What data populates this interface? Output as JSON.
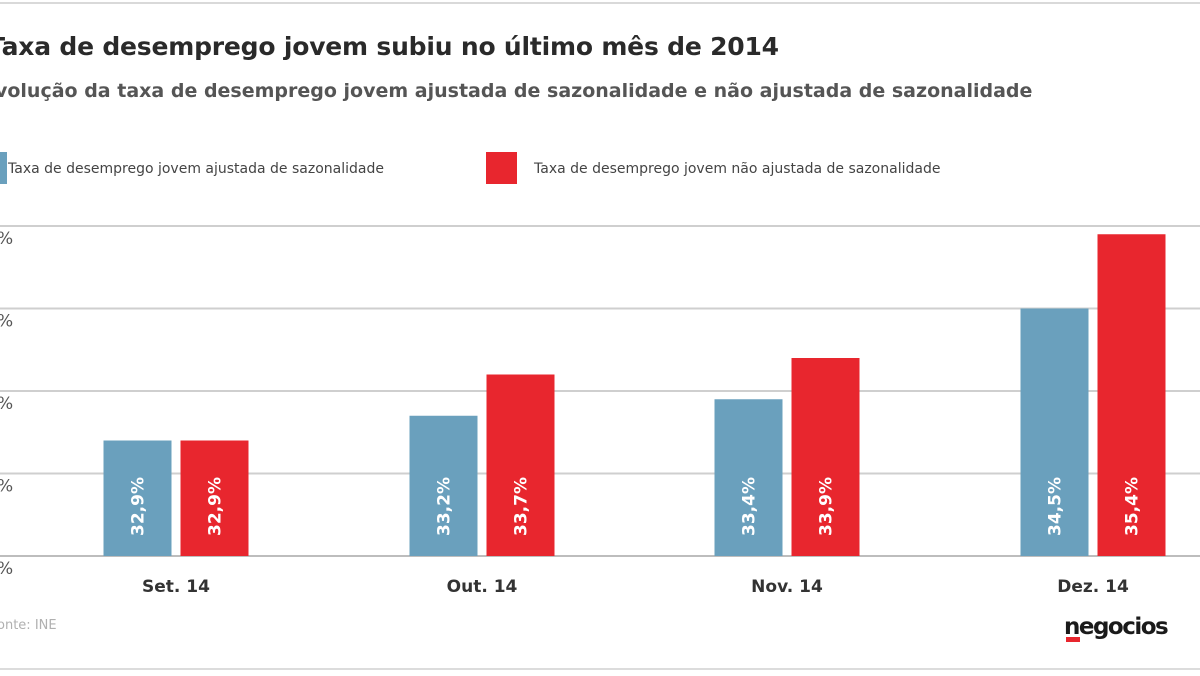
{
  "header": {
    "title": "Taxa de desemprego jovem subiu no último mês de 2014",
    "subtitle": "Evolução da taxa de desemprego jovem ajustada de sazonalidade e não ajustada de sazonalidade"
  },
  "footer": {
    "source": "Fonte: INE",
    "logo": "negocios"
  },
  "colors": {
    "adjusted": "#6aa0bd",
    "not_adjusted": "#e8262e"
  },
  "chart_data": {
    "type": "bar",
    "title": "Taxa de desemprego jovem subiu no último mês de 2014",
    "subtitle": "Evolução da taxa de desemprego jovem ajustada de sazonalidade e não ajustada de sazonalidade",
    "categories": [
      "Set. 14",
      "Out. 14",
      "Nov. 14",
      "Dez. 14"
    ],
    "series": [
      {
        "name": "Taxa de desemprego jovem ajustada de sazonalidade",
        "values": [
          32.9,
          33.2,
          33.4,
          34.5
        ],
        "labels": [
          "32,9%",
          "33,2%",
          "33,4%",
          "34,5%"
        ]
      },
      {
        "name": "Taxa de desemprego jovem não ajustada de sazonalidade",
        "values": [
          32.9,
          33.7,
          33.9,
          35.4
        ],
        "labels": [
          "32,9%",
          "33,7%",
          "33,9%",
          "35,4%"
        ]
      }
    ],
    "ylim": [
      31.5,
      35.5
    ],
    "yticks": [
      31.5,
      32.5,
      33.5,
      34.5,
      35.5
    ],
    "ytick_labels": [
      "%",
      "%",
      "%",
      "%",
      "%"
    ],
    "grid": true,
    "legend": "top-left",
    "source": "Fonte: INE"
  }
}
